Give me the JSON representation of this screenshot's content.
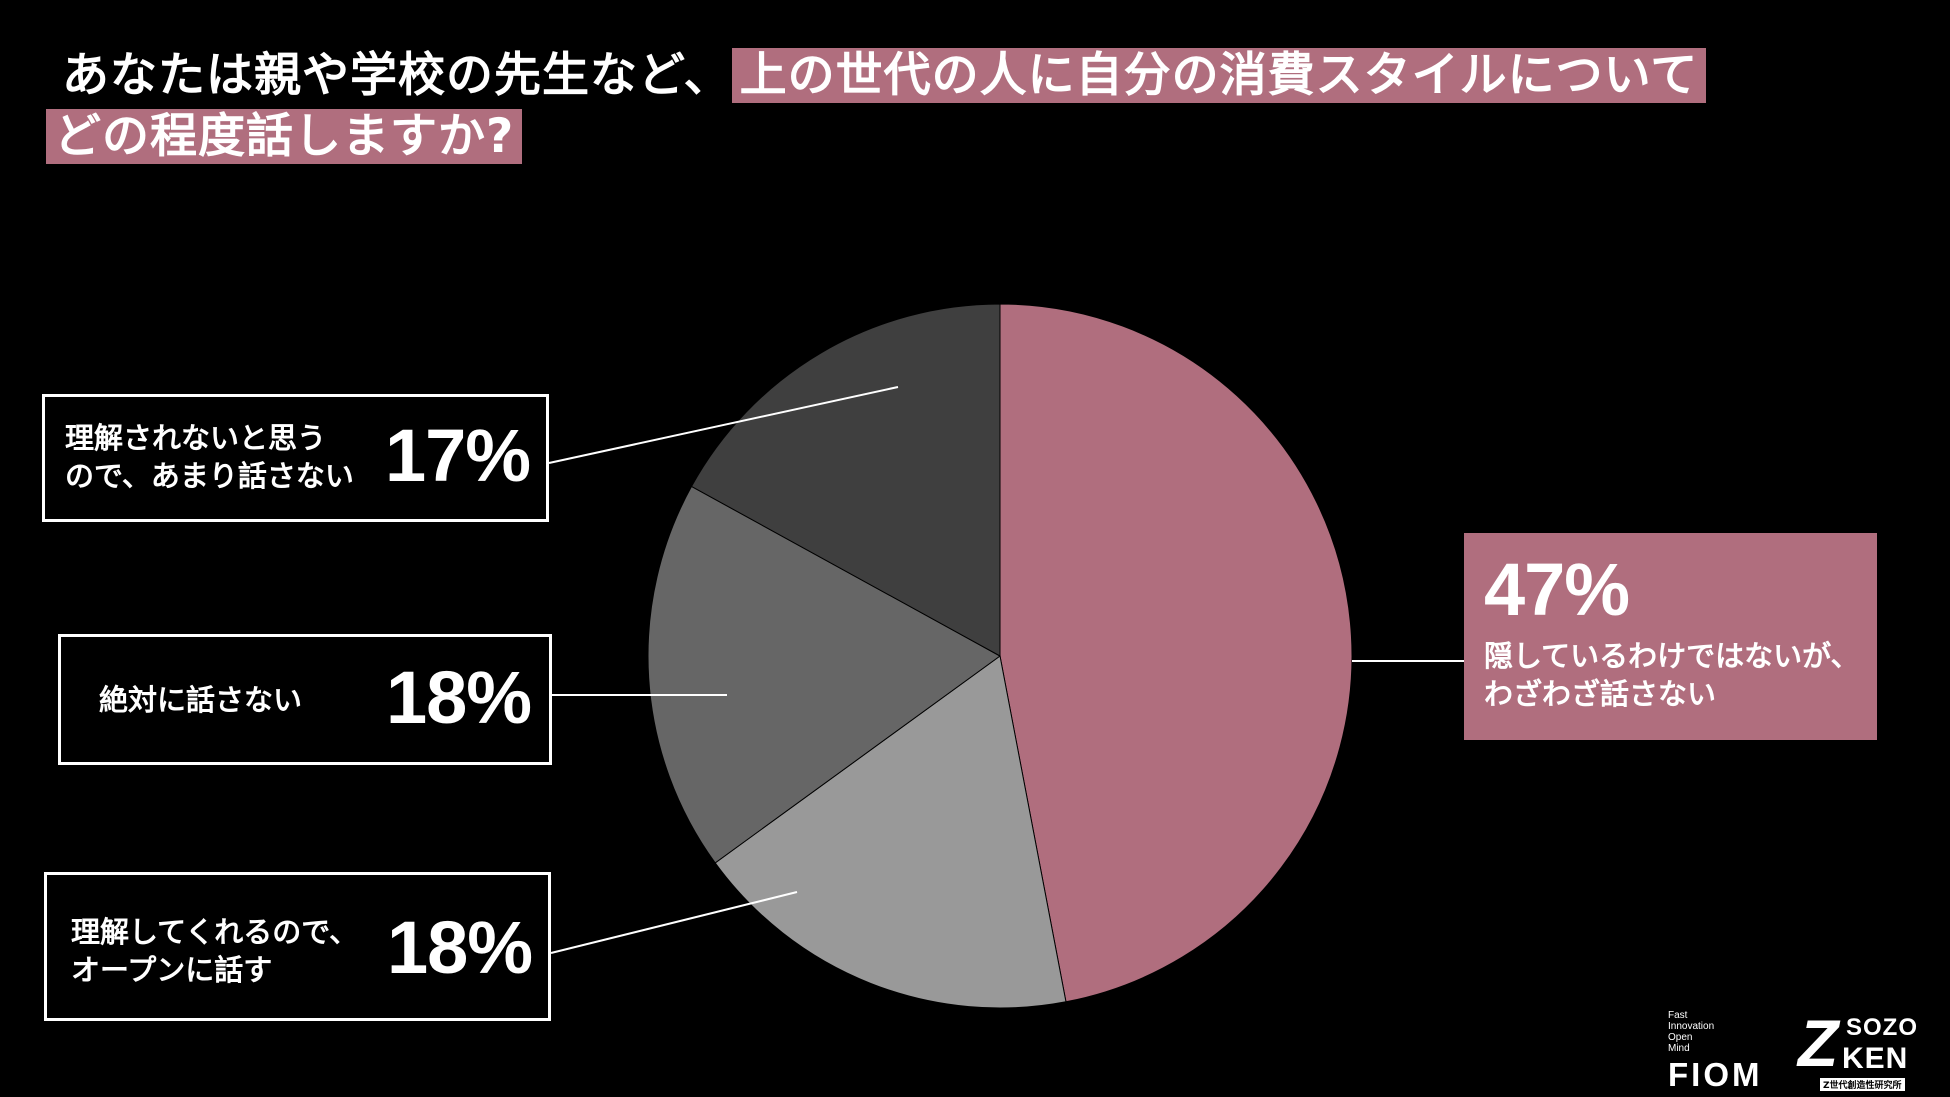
{
  "title": {
    "line1_plain": "あなたは親や学校の先生など、",
    "line1_highlight": "上の世代の人に自分の消費スタイルについて",
    "line2_highlight": "どの程度話しますか?"
  },
  "colors": {
    "background": "#000000",
    "accent": "#b06e7e",
    "slice_hidden": "#b06e7e",
    "slice_open": "#999999",
    "slice_never": "#666666",
    "slice_misunderstood": "#3f3f3f"
  },
  "chart_data": {
    "type": "pie",
    "start_angle_deg": 0,
    "direction": "clockwise",
    "slices": [
      {
        "label": "隠しているわけではないが、\nわざわざ話さない",
        "value": 47,
        "display": "47%",
        "color": "#b06e7e"
      },
      {
        "label": "理解してくれるので、\nオープンに話す",
        "value": 18,
        "display": "18%",
        "color": "#999999"
      },
      {
        "label": "絶対に話さない",
        "value": 18,
        "display": "18%",
        "color": "#666666"
      },
      {
        "label": "理解されないと思う\nので、あまり話さない",
        "value": 17,
        "display": "17%",
        "color": "#3f3f3f"
      }
    ]
  },
  "logos": {
    "fiom_small": "Fast\nInnovation\nOpen\nMind",
    "fiom_big": "FIOM",
    "sozo_z": "Z",
    "sozo_top": "SOZO",
    "sozo_bottom": "KEN",
    "sozo_sub": "Z世代創造性研究所"
  }
}
